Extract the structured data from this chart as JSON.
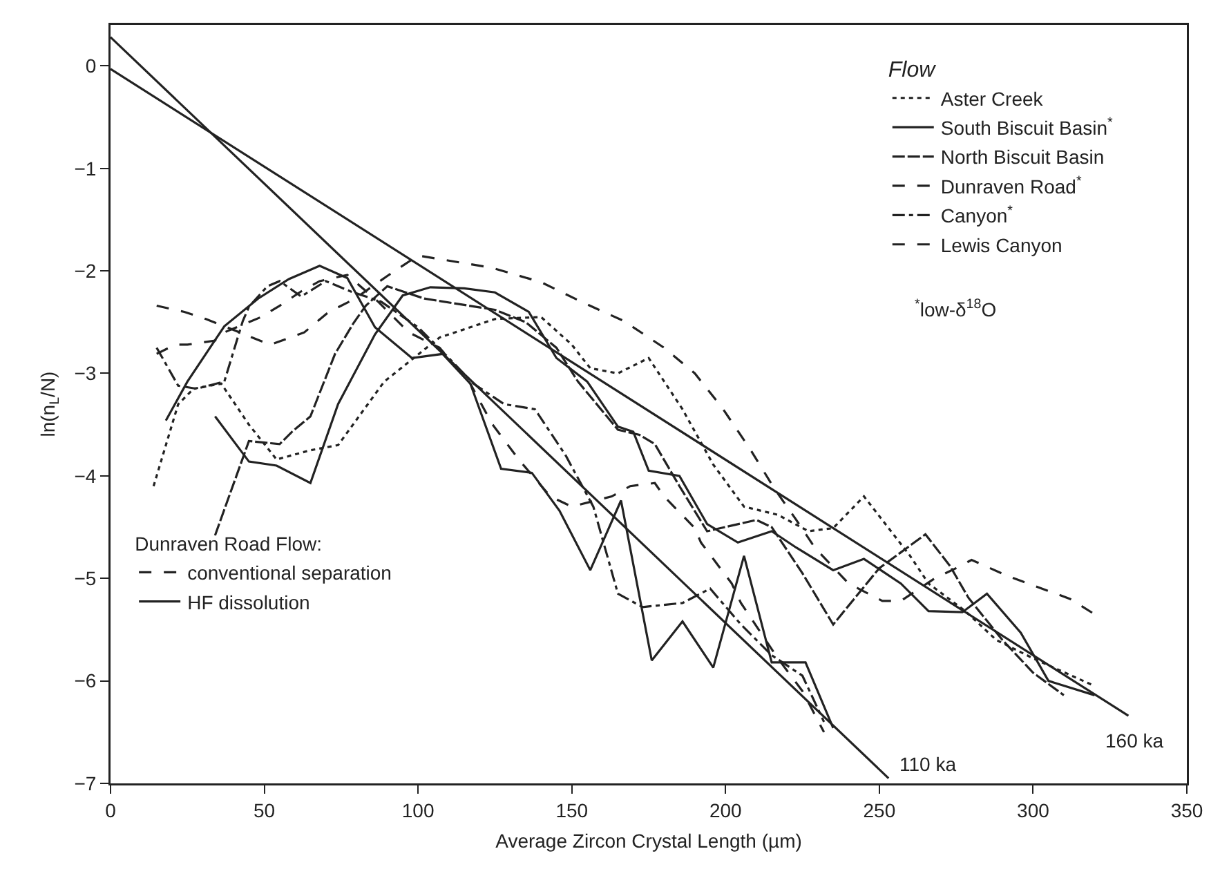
{
  "chart_data": {
    "type": "line",
    "xlabel": "Average Zircon Crystal Length (µm)",
    "ylabel": "ln(n$_{L}$/N)",
    "legend_title": "Flow",
    "xlim": [
      0,
      350
    ],
    "xticks": [
      0,
      50,
      100,
      150,
      200,
      250,
      300,
      350
    ],
    "ylim": [
      -7,
      0.4
    ],
    "yticks": [
      {
        "value": -7,
        "label": "−7"
      },
      {
        "value": -6,
        "label": "−6"
      },
      {
        "value": -5,
        "label": "−5"
      },
      {
        "value": -4,
        "label": "−4"
      },
      {
        "value": -3,
        "label": "−3"
      },
      {
        "value": -2,
        "label": "−2"
      },
      {
        "value": -1,
        "label": "−1"
      },
      0
    ],
    "grid": false,
    "legend": "top right",
    "marker": "none",
    "series": [
      {
        "name": "Aster Creek",
        "color": "#222222",
        "line_style": "dotted",
        "x": [
          14,
          22,
          27,
          36,
          45,
          54,
          65,
          74,
          89,
          107,
          125,
          140,
          150,
          156,
          165,
          175,
          186,
          196,
          206,
          217,
          227,
          235,
          245,
          260,
          266,
          278,
          288,
          300,
          320
        ],
        "values": [
          -4.1,
          -3.3,
          -3.15,
          -3.1,
          -3.5,
          -3.84,
          -3.75,
          -3.7,
          -3.08,
          -2.65,
          -2.47,
          -2.45,
          -2.72,
          -2.95,
          -3.0,
          -2.85,
          -3.35,
          -3.89,
          -4.3,
          -4.38,
          -4.54,
          -4.51,
          -4.2,
          -4.78,
          -5.05,
          -5.32,
          -5.6,
          -5.78,
          -6.05
        ]
      },
      {
        "name": "South Biscuit Basin$^{*}$",
        "color": "#222222",
        "line_style": "solid",
        "x": [
          34,
          45,
          54,
          65,
          74,
          86,
          95,
          104,
          115,
          125,
          136,
          145,
          155,
          165,
          170,
          175,
          185,
          194,
          204,
          215,
          223,
          235,
          245,
          257,
          266,
          277,
          285,
          296,
          305,
          320
        ],
        "values": [
          -3.42,
          -3.86,
          -3.9,
          -4.07,
          -3.3,
          -2.62,
          -2.24,
          -2.16,
          -2.17,
          -2.21,
          -2.4,
          -2.85,
          -3.08,
          -3.52,
          -3.57,
          -3.95,
          -4.0,
          -4.47,
          -4.65,
          -4.54,
          -4.7,
          -4.92,
          -4.81,
          -5.05,
          -5.32,
          -5.33,
          -5.15,
          -5.53,
          -6.0,
          -6.14
        ]
      },
      {
        "name": "North Biscuit Basin",
        "color": "#222222",
        "line_style": "longdash",
        "x": [
          34,
          45,
          55,
          59,
          65,
          73,
          79,
          83,
          90,
          102,
          125,
          135,
          145,
          152,
          165,
          172,
          177,
          185,
          194,
          210,
          215,
          225,
          235,
          250,
          265,
          273,
          279,
          290,
          300,
          310
        ],
        "values": [
          -4.58,
          -3.66,
          -3.69,
          -3.57,
          -3.42,
          -2.81,
          -2.51,
          -2.34,
          -2.15,
          -2.27,
          -2.38,
          -2.5,
          -2.75,
          -3.08,
          -3.55,
          -3.6,
          -3.69,
          -4.1,
          -4.54,
          -4.43,
          -4.5,
          -4.95,
          -5.45,
          -4.9,
          -4.57,
          -4.88,
          -5.19,
          -5.6,
          -5.92,
          -6.14
        ]
      },
      {
        "name": "Dunraven Road$^{*}$",
        "color": "#222222",
        "line_style": "dashed",
        "x": [
          15,
          21,
          25,
          34,
          37,
          49,
          55,
          62,
          68,
          77,
          87,
          97,
          107,
          117,
          124,
          133,
          143,
          150,
          163,
          169,
          177,
          180,
          190,
          192,
          202,
          205,
          217,
          225,
          232
        ],
        "values": [
          -2.81,
          -2.72,
          -2.72,
          -2.68,
          -2.6,
          -2.45,
          -2.34,
          -2.2,
          -2.1,
          -2.04,
          -2.3,
          -2.6,
          -2.75,
          -3.1,
          -3.49,
          -3.85,
          -4.2,
          -4.3,
          -4.2,
          -4.1,
          -4.07,
          -4.2,
          -4.51,
          -4.65,
          -5.05,
          -5.24,
          -5.78,
          -6.1,
          -6.5
        ]
      },
      {
        "name": "Canyon$^{*}$",
        "color": "#222222",
        "line_style": "dashdot",
        "x": [
          15,
          22,
          28,
          37,
          43,
          45,
          51,
          55,
          62,
          70,
          78,
          88,
          100,
          110,
          118,
          128,
          138,
          148,
          157,
          165,
          173,
          186,
          195,
          205,
          215,
          225,
          232
        ],
        "values": [
          -2.75,
          -3.12,
          -3.15,
          -3.08,
          -2.49,
          -2.35,
          -2.15,
          -2.1,
          -2.25,
          -2.1,
          -2.2,
          -2.3,
          -2.55,
          -2.85,
          -3.1,
          -3.3,
          -3.35,
          -3.8,
          -4.3,
          -5.15,
          -5.28,
          -5.24,
          -5.1,
          -5.45,
          -5.75,
          -5.95,
          -6.4
        ]
      },
      {
        "name": "Lewis Canyon",
        "color": "#222222",
        "line_style": "dashed",
        "x": [
          15,
          24,
          31,
          37,
          46,
          52,
          63,
          71,
          79,
          90,
          100,
          110,
          124,
          140,
          153,
          167,
          180,
          190,
          199,
          208,
          216,
          223,
          229,
          240,
          251,
          257,
          268,
          275,
          280,
          292,
          312,
          320
        ],
        "values": [
          -2.34,
          -2.4,
          -2.47,
          -2.54,
          -2.65,
          -2.72,
          -2.6,
          -2.4,
          -2.28,
          -2.05,
          -1.85,
          -1.9,
          -1.97,
          -2.11,
          -2.3,
          -2.49,
          -2.75,
          -3.0,
          -3.34,
          -3.74,
          -4.13,
          -4.43,
          -4.7,
          -5.05,
          -5.22,
          -5.22,
          -5.0,
          -4.9,
          -4.82,
          -4.98,
          -5.2,
          -5.35
        ]
      },
      {
        "name": "HF dissolution",
        "color": "#222222",
        "line_style": "solid",
        "x": [
          18,
          25,
          37,
          48,
          58,
          68,
          77,
          86,
          98,
          108,
          117,
          127,
          137,
          146,
          156,
          166,
          176,
          186,
          196,
          206,
          215,
          226,
          235
        ],
        "values": [
          -3.46,
          -3.08,
          -2.54,
          -2.27,
          -2.08,
          -1.95,
          -2.07,
          -2.55,
          -2.85,
          -2.81,
          -3.1,
          -3.93,
          -3.97,
          -4.34,
          -4.92,
          -4.24,
          -5.8,
          -5.42,
          -5.87,
          -4.78,
          -5.82,
          -5.82,
          -6.46
        ]
      },
      {
        "type": "line",
        "color": "#222222",
        "line_style": "solid",
        "x": [
          0,
          253
        ],
        "values": [
          0.28,
          -6.95
        ]
      },
      {
        "type": "line",
        "color": "#222222",
        "line_style": "solid",
        "x": [
          0,
          331
        ],
        "values": [
          -0.03,
          -6.34
        ]
      }
    ],
    "annotations": [
      "Dunraven Road Flow:",
      "conventional separation",
      "$^{*}$low-δ$^{18}$O",
      {
        "text": "110 ka",
        "x": 253,
        "y": -6.95
      },
      {
        "text": "160 ka",
        "x": 331,
        "y": -6.34
      }
    ]
  }
}
